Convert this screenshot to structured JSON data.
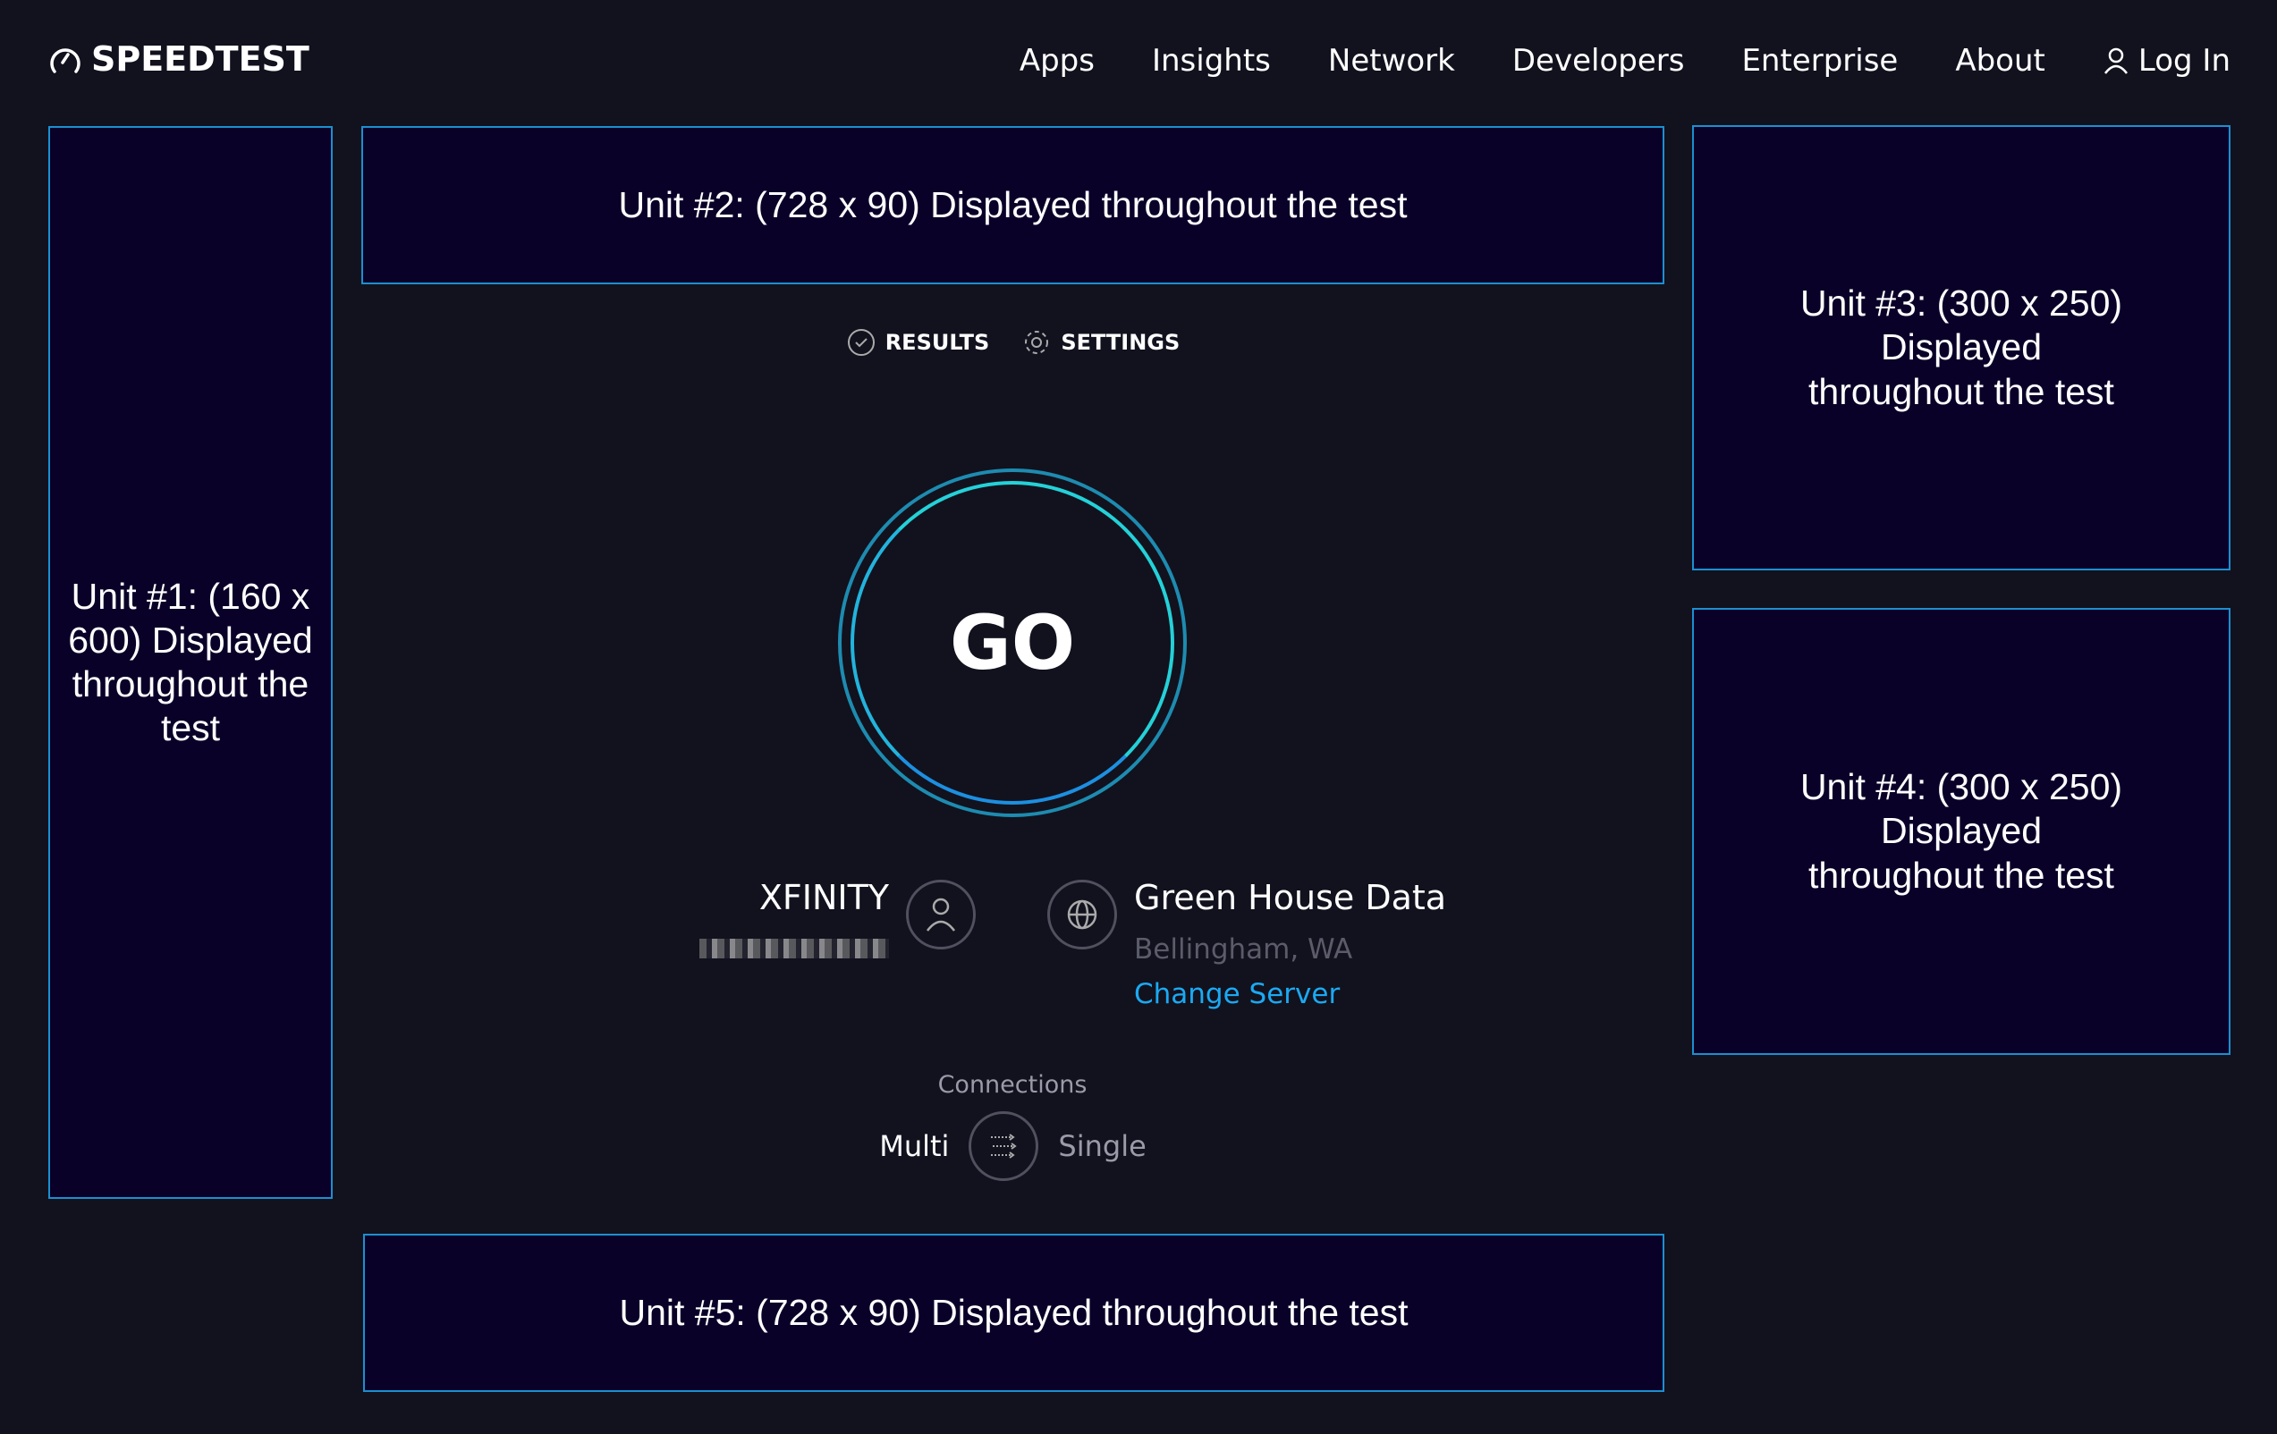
{
  "header": {
    "logo": "SPEEDTEST",
    "nav": [
      "Apps",
      "Insights",
      "Network",
      "Developers",
      "Enterprise",
      "About"
    ],
    "login": "Log In"
  },
  "ads": {
    "unit1": "Unit #1: (160 x 600) Displayed throughout the test",
    "unit2": "Unit #2: (728 x 90) Displayed throughout the test",
    "unit3": "Unit #3: (300 x 250) Displayed throughout the test",
    "unit4": "Unit #4: (300 x 250) Displayed throughout the test",
    "unit5": "Unit #5: (728 x 90) Displayed throughout the test"
  },
  "tabs": {
    "results": "RESULTS",
    "settings": "SETTINGS"
  },
  "go": "GO",
  "isp": {
    "name": "XFINITY"
  },
  "server": {
    "name": "Green House Data",
    "location": "Bellingham, WA",
    "change": "Change Server"
  },
  "connections": {
    "label": "Connections",
    "multi": "Multi",
    "single": "Single"
  },
  "colors": {
    "background": "#11121e",
    "ad_border": "#1c8fd0",
    "accent": "#1ca9f2",
    "ring": "#25d1d8"
  }
}
